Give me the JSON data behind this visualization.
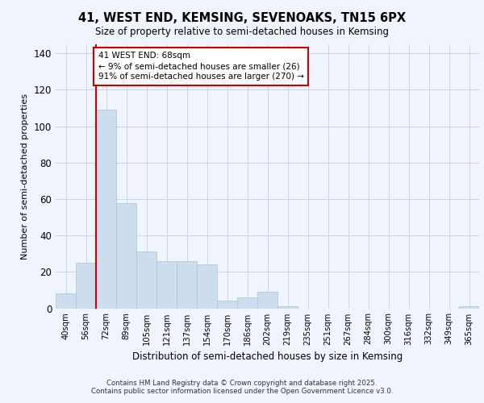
{
  "title1": "41, WEST END, KEMSING, SEVENOAKS, TN15 6PX",
  "title2": "Size of property relative to semi-detached houses in Kemsing",
  "xlabel": "Distribution of semi-detached houses by size in Kemsing",
  "ylabel": "Number of semi-detached properties",
  "bar_color": "#ccdded",
  "bar_edge_color": "#aac4d8",
  "background_color": "#f0f4fc",
  "grid_color": "#c8d4e8",
  "annotation_text": "41 WEST END: 68sqm\n← 9% of semi-detached houses are smaller (26)\n91% of semi-detached houses are larger (270) →",
  "annotation_box_color": "#ffffff",
  "annotation_box_edge": "#cc0000",
  "marker_line_color": "#cc0000",
  "bin_labels": [
    "40sqm",
    "56sqm",
    "72sqm",
    "89sqm",
    "105sqm",
    "121sqm",
    "137sqm",
    "154sqm",
    "170sqm",
    "186sqm",
    "202sqm",
    "219sqm",
    "235sqm",
    "251sqm",
    "267sqm",
    "284sqm",
    "300sqm",
    "316sqm",
    "332sqm",
    "349sqm",
    "365sqm"
  ],
  "values": [
    8,
    25,
    109,
    58,
    31,
    26,
    26,
    24,
    4,
    6,
    9,
    1,
    0,
    0,
    0,
    0,
    0,
    0,
    0,
    0,
    1
  ],
  "ylim": [
    0,
    145
  ],
  "yticks": [
    0,
    20,
    40,
    60,
    80,
    100,
    120,
    140
  ],
  "footer": "Contains HM Land Registry data © Crown copyright and database right 2025.\nContains public sector information licensed under the Open Government Licence v3.0."
}
